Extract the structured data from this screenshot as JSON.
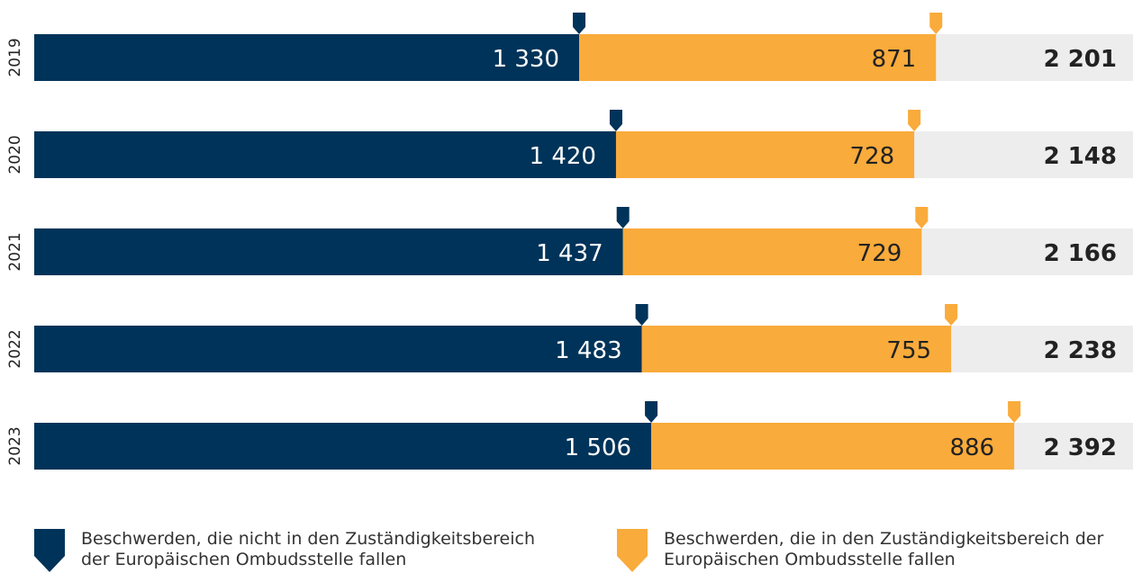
{
  "chart_data": {
    "type": "stacked-bar",
    "orientation": "horizontal",
    "categories": [
      "2019",
      "2020",
      "2021",
      "2022",
      "2023"
    ],
    "series": [
      {
        "name": "Beschwerden, die nicht in den Zuständigkeitsbereich der Europäischen Ombudsstelle fallen",
        "color": "#003359",
        "values": [
          1330,
          1420,
          1437,
          1483,
          1506
        ],
        "value_labels": [
          "1 330",
          "1 420",
          "1 437",
          "1 483",
          "1 506"
        ]
      },
      {
        "name": "Beschwerden, die in den Zuständigkeitsbereich der Europäischen Ombudsstelle fallen",
        "color": "#f9ab3b",
        "values": [
          871,
          728,
          729,
          755,
          886
        ],
        "value_labels": [
          "871",
          "728",
          "729",
          "755",
          "886"
        ]
      }
    ],
    "totals": [
      2201,
      2148,
      2166,
      2238,
      2392
    ],
    "total_labels": [
      "2 201",
      "2 148",
      "2 166",
      "2 238",
      "2 392"
    ]
  }
}
